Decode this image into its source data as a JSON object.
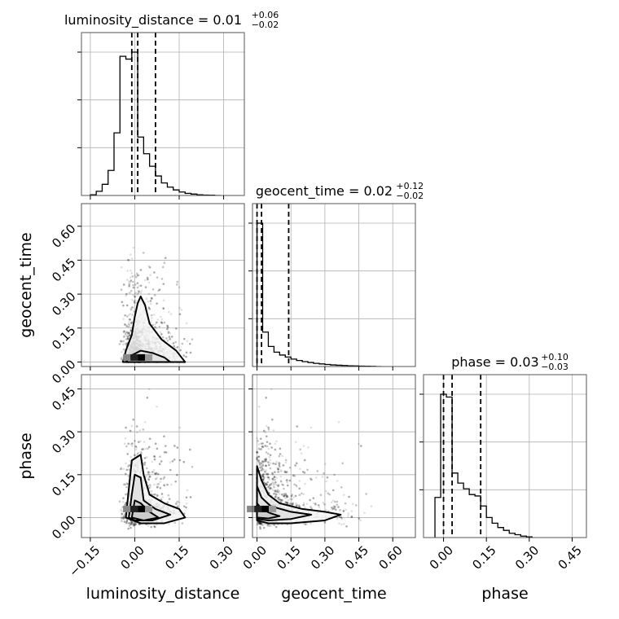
{
  "chart_data": {
    "type": "corner",
    "parameters": [
      "luminosity_distance",
      "geocent_time",
      "phase"
    ],
    "axis_labels": {
      "luminosity_distance": "luminosity_distance",
      "geocent_time": "geocent_time",
      "phase": "phase"
    },
    "ranges": {
      "luminosity_distance": [
        -0.18,
        0.37
      ],
      "geocent_time": [
        -0.02,
        0.7
      ],
      "phase": [
        -0.07,
        0.5
      ]
    },
    "ticks": {
      "luminosity_distance": [
        -0.15,
        0.0,
        0.15,
        0.3
      ],
      "geocent_time": [
        0.0,
        0.15,
        0.3,
        0.45,
        0.6
      ],
      "phase": [
        0.0,
        0.15,
        0.3,
        0.45
      ]
    },
    "tick_labels": {
      "luminosity_distance": [
        "−0.15",
        "0.00",
        "0.15",
        "0.30"
      ],
      "geocent_time": [
        "0.00",
        "0.15",
        "0.30",
        "0.45",
        "0.60"
      ],
      "phase": [
        "0.00",
        "0.15",
        "0.30",
        "0.45"
      ]
    },
    "titles": [
      {
        "param": "luminosity_distance",
        "main": "luminosity_distance = 0.01",
        "upper": "+0.06",
        "lower": "−0.02"
      },
      {
        "param": "geocent_time",
        "main": "geocent_time = 0.02",
        "upper": "+0.12",
        "lower": "−0.02"
      },
      {
        "param": "phase",
        "main": "phase = 0.03",
        "upper": "+0.10",
        "lower": "−0.03"
      }
    ],
    "quantiles": {
      "luminosity_distance": [
        -0.01,
        0.01,
        0.07
      ],
      "geocent_time": [
        0.0,
        0.02,
        0.14
      ],
      "phase": [
        0.0,
        0.03,
        0.13
      ]
    },
    "histograms": {
      "luminosity_distance": {
        "edges": [
          -0.15,
          -0.13,
          -0.11,
          -0.09,
          -0.07,
          -0.05,
          -0.03,
          -0.01,
          0.01,
          0.03,
          0.05,
          0.07,
          0.09,
          0.11,
          0.13,
          0.15,
          0.17,
          0.19,
          0.21,
          0.23,
          0.25,
          0.27,
          0.29
        ],
        "counts": [
          0.005,
          0.03,
          0.08,
          0.18,
          0.45,
          1.0,
          0.98,
          1.03,
          0.42,
          0.3,
          0.21,
          0.14,
          0.09,
          0.06,
          0.04,
          0.025,
          0.015,
          0.01,
          0.005,
          0.003,
          0.002,
          0.0
        ]
      },
      "geocent_time": {
        "edges": [
          0.0,
          0.025,
          0.05,
          0.075,
          0.1,
          0.125,
          0.15,
          0.175,
          0.2,
          0.225,
          0.25,
          0.275,
          0.3,
          0.325,
          0.35,
          0.375,
          0.4,
          0.425,
          0.45,
          0.475,
          0.5,
          0.525,
          0.55
        ],
        "counts": [
          1.0,
          0.24,
          0.14,
          0.1,
          0.08,
          0.066,
          0.052,
          0.042,
          0.034,
          0.028,
          0.022,
          0.018,
          0.014,
          0.011,
          0.009,
          0.007,
          0.005,
          0.004,
          0.003,
          0.002,
          0.001,
          0.0
        ]
      },
      "phase": {
        "edges": [
          -0.03,
          -0.01,
          0.01,
          0.03,
          0.05,
          0.07,
          0.09,
          0.11,
          0.13,
          0.15,
          0.17,
          0.19,
          0.21,
          0.23,
          0.25,
          0.27,
          0.29,
          0.31
        ],
        "counts": [
          0.28,
          1.0,
          0.98,
          0.45,
          0.38,
          0.34,
          0.3,
          0.29,
          0.22,
          0.14,
          0.1,
          0.07,
          0.05,
          0.03,
          0.02,
          0.01,
          0.005
        ]
      }
    },
    "scatter_pairs": [
      {
        "x": "luminosity_distance",
        "y": "geocent_time"
      },
      {
        "x": "luminosity_distance",
        "y": "phase"
      },
      {
        "x": "geocent_time",
        "y": "phase"
      }
    ],
    "contours": {
      "luminosity_distance|geocent_time": [
        [
          [
            -0.04,
            0.0
          ],
          [
            -0.03,
            0.05
          ],
          [
            -0.01,
            0.12
          ],
          [
            0.0,
            0.2
          ],
          [
            0.01,
            0.26
          ],
          [
            0.02,
            0.29
          ],
          [
            0.035,
            0.25
          ],
          [
            0.05,
            0.17
          ],
          [
            0.09,
            0.1
          ],
          [
            0.14,
            0.05
          ],
          [
            0.17,
            0.0
          ]
        ],
        [
          [
            -0.03,
            0.0
          ],
          [
            -0.01,
            0.03
          ],
          [
            0.02,
            0.05
          ],
          [
            0.06,
            0.04
          ],
          [
            0.1,
            0.02
          ],
          [
            0.12,
            0.0
          ]
        ]
      ],
      "luminosity_distance|phase": [
        [
          [
            -0.03,
            0.0
          ],
          [
            -0.02,
            0.1
          ],
          [
            -0.01,
            0.2
          ],
          [
            0.02,
            0.22
          ],
          [
            0.03,
            0.15
          ],
          [
            0.05,
            0.08
          ],
          [
            0.1,
            0.05
          ],
          [
            0.15,
            0.03
          ],
          [
            0.17,
            0.0
          ],
          [
            0.1,
            -0.02
          ],
          [
            0.02,
            -0.02
          ],
          [
            -0.03,
            0.0
          ]
        ],
        [
          [
            -0.02,
            0.0
          ],
          [
            -0.01,
            0.08
          ],
          [
            0.0,
            0.15
          ],
          [
            0.02,
            0.14
          ],
          [
            0.03,
            0.06
          ],
          [
            0.07,
            0.03
          ],
          [
            0.12,
            0.01
          ],
          [
            0.06,
            -0.01
          ],
          [
            0.0,
            -0.01
          ],
          [
            -0.02,
            0.0
          ]
        ],
        [
          [
            -0.01,
            0.0
          ],
          [
            0.0,
            0.06
          ],
          [
            0.02,
            0.05
          ],
          [
            0.05,
            0.02
          ],
          [
            0.08,
            0.0
          ],
          [
            0.03,
            -0.01
          ],
          [
            -0.01,
            0.0
          ]
        ]
      ],
      "geocent_time|phase": [
        [
          [
            0.0,
            0.18
          ],
          [
            0.02,
            0.13
          ],
          [
            0.05,
            0.08
          ],
          [
            0.1,
            0.05
          ],
          [
            0.2,
            0.03
          ],
          [
            0.3,
            0.02
          ],
          [
            0.37,
            0.01
          ],
          [
            0.3,
            -0.01
          ],
          [
            0.15,
            -0.02
          ],
          [
            0.05,
            -0.02
          ],
          [
            0.0,
            -0.01
          ]
        ],
        [
          [
            0.0,
            0.11
          ],
          [
            0.02,
            0.07
          ],
          [
            0.06,
            0.04
          ],
          [
            0.15,
            0.02
          ],
          [
            0.24,
            0.01
          ],
          [
            0.15,
            -0.005
          ],
          [
            0.05,
            -0.01
          ],
          [
            0.0,
            -0.005
          ]
        ],
        [
          [
            0.0,
            0.05
          ],
          [
            0.02,
            0.03
          ],
          [
            0.06,
            0.015
          ],
          [
            0.1,
            0.005
          ],
          [
            0.05,
            -0.003
          ],
          [
            0.0,
            0.0
          ]
        ]
      ]
    },
    "grid": true
  }
}
